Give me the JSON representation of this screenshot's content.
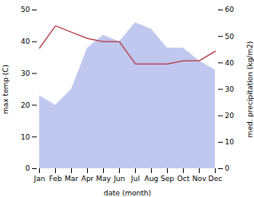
{
  "chart_data": {
    "type": "line",
    "xlabel": "date (month)",
    "ylabel": "max temp (C)",
    "y2label": "med. precipitation (kg/m2)",
    "categories": [
      "Jan",
      "Feb",
      "Mar",
      "Apr",
      "May",
      "Jun",
      "Jul",
      "Aug",
      "Sep",
      "Oct",
      "Nov",
      "Dec"
    ],
    "series": [
      {
        "type": "area",
        "color": "#c0c8f0",
        "values": [
          23,
          20,
          25,
          38,
          42,
          40,
          46,
          44,
          38,
          38,
          34,
          31
        ]
      },
      {
        "type": "line",
        "color": "#b94a5a",
        "values": [
          38,
          45,
          43,
          41,
          40,
          40,
          33,
          33,
          33,
          34,
          34,
          37
        ]
      }
    ],
    "ylim": [
      0,
      50
    ],
    "yticks": [
      0,
      10,
      20,
      30,
      40,
      50
    ],
    "y2lim": [
      0,
      60
    ],
    "y2ticks": [
      0,
      10,
      20,
      30,
      40,
      50,
      60
    ],
    "grid": false
  }
}
